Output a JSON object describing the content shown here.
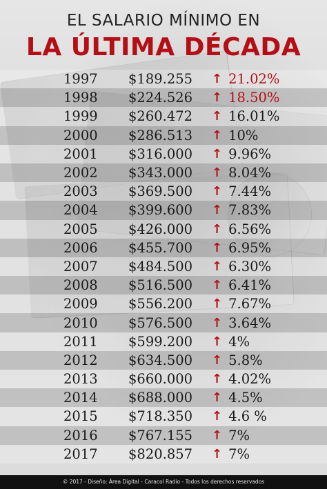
{
  "header": {
    "title_top": "EL SALARIO MÍNIMO EN",
    "title_main": "LA ÚLTIMA DÉCADA"
  },
  "colors": {
    "accent": "#b40f16",
    "text": "#1a1a1a",
    "footer_bg": "#111111"
  },
  "icons": {
    "increase": "up-arrow-icon"
  },
  "rows": [
    {
      "year": "1997",
      "salary": "$189.255",
      "change": "21.02%",
      "highlight": true
    },
    {
      "year": "1998",
      "salary": "$224.526",
      "change": "18.50%",
      "highlight": true
    },
    {
      "year": "1999",
      "salary": "$260.472",
      "change": "16.01%",
      "highlight": false
    },
    {
      "year": "2000",
      "salary": "$286.513",
      "change": "10%",
      "highlight": false
    },
    {
      "year": "2001",
      "salary": "$316.000",
      "change": "9.96%",
      "highlight": false
    },
    {
      "year": "2002",
      "salary": "$343.000",
      "change": "8.04%",
      "highlight": false
    },
    {
      "year": "2003",
      "salary": "$369.500",
      "change": "7.44%",
      "highlight": false
    },
    {
      "year": "2004",
      "salary": "$399.600",
      "change": "7.83%",
      "highlight": false
    },
    {
      "year": "2005",
      "salary": "$426.000",
      "change": "6.56%",
      "highlight": false
    },
    {
      "year": "2006",
      "salary": "$455.700",
      "change": "6.95%",
      "highlight": false
    },
    {
      "year": "2007",
      "salary": "$484.500",
      "change": "6.30%",
      "highlight": false
    },
    {
      "year": "2008",
      "salary": "$516.500",
      "change": "6.41%",
      "highlight": false
    },
    {
      "year": "2009",
      "salary": "$556.200",
      "change": "7.67%",
      "highlight": false
    },
    {
      "year": "2010",
      "salary": "$576.500",
      "change": "3.64%",
      "highlight": false
    },
    {
      "year": "2011",
      "salary": "$599.200",
      "change": "4%",
      "highlight": false
    },
    {
      "year": "2012",
      "salary": "$634.500",
      "change": "5.8%",
      "highlight": false
    },
    {
      "year": "2013",
      "salary": "$660.000",
      "change": "4.02%",
      "highlight": false
    },
    {
      "year": "2014",
      "salary": "$688.000",
      "change": "4.5%",
      "highlight": false
    },
    {
      "year": "2015",
      "salary": "$718.350",
      "change": "4.6 %",
      "highlight": false
    },
    {
      "year": "2016",
      "salary": "$767.155",
      "change": "7%",
      "highlight": false
    },
    {
      "year": "2017",
      "salary": "$820.857",
      "change": "7%",
      "highlight": false
    }
  ],
  "footer": {
    "credit": "© 2017 - Diseño: Área Digital - Caracol Radio - Todos los derechos reservados"
  }
}
